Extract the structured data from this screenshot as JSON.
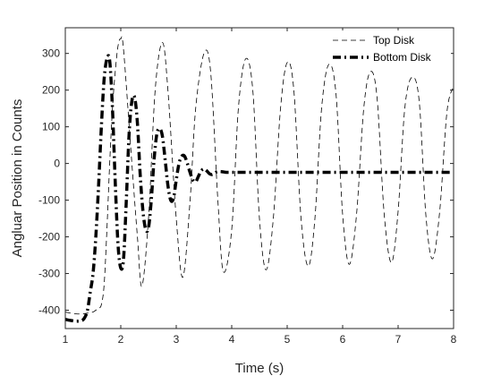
{
  "chart_data": {
    "type": "line",
    "title": "",
    "xlabel": "Time (s)",
    "ylabel": "Angluar Position in Counts",
    "xlim": [
      1,
      8
    ],
    "ylim": [
      -450,
      370
    ],
    "xticks": [
      "1",
      "2",
      "3",
      "4",
      "5",
      "6",
      "7",
      "8"
    ],
    "yticks": [
      "-400",
      "-300",
      "-200",
      "-100",
      "0",
      "100",
      "200",
      "300"
    ],
    "ytick_values": [
      -400,
      -300,
      -200,
      -100,
      0,
      100,
      200,
      300
    ],
    "xtick_values": [
      1,
      2,
      3,
      4,
      5,
      6,
      7,
      8
    ],
    "grid": false,
    "legend_position": "top-right",
    "series": [
      {
        "name": "Top Disk",
        "style": "dashed-thin",
        "color": "#000000",
        "x": [
          1.0,
          1.1,
          1.2,
          1.3,
          1.4,
          1.5,
          1.55,
          1.6,
          1.65,
          1.7,
          1.75,
          1.8,
          1.85,
          1.9,
          1.95,
          2.0,
          2.05,
          2.2,
          2.3,
          2.38,
          2.5,
          2.62,
          2.75,
          2.85,
          3.0,
          3.12,
          3.25,
          3.35,
          3.5,
          3.62,
          3.75,
          3.85,
          4.0,
          4.12,
          4.25,
          4.38,
          4.5,
          4.62,
          4.75,
          4.88,
          5.0,
          5.12,
          5.25,
          5.38,
          5.5,
          5.62,
          5.75,
          5.88,
          6.0,
          6.12,
          6.25,
          6.38,
          6.5,
          6.62,
          6.75,
          6.88,
          7.0,
          7.12,
          7.25,
          7.38,
          7.5,
          7.62,
          7.75,
          7.88,
          8.0
        ],
        "y": [
          -405,
          -408,
          -410,
          -410,
          -408,
          -405,
          -400,
          -395,
          -385,
          -330,
          -180,
          0,
          150,
          250,
          320,
          340,
          310,
          0,
          -200,
          -335,
          -150,
          200,
          330,
          200,
          -150,
          -310,
          -100,
          150,
          300,
          250,
          -100,
          -295,
          -180,
          150,
          285,
          200,
          -150,
          -290,
          -150,
          150,
          275,
          200,
          -150,
          -280,
          -150,
          150,
          270,
          190,
          -140,
          -275,
          -140,
          150,
          250,
          180,
          -140,
          -270,
          -130,
          150,
          235,
          170,
          -140,
          -260,
          -130,
          140,
          210
        ]
      },
      {
        "name": "Bottom Disk",
        "style": "dash-dot-thick",
        "color": "#000000",
        "x": [
          1.0,
          1.1,
          1.2,
          1.3,
          1.35,
          1.4,
          1.45,
          1.5,
          1.55,
          1.6,
          1.65,
          1.7,
          1.75,
          1.8,
          1.85,
          1.9,
          1.95,
          2.0,
          2.05,
          2.1,
          2.15,
          2.2,
          2.25,
          2.3,
          2.35,
          2.4,
          2.45,
          2.5,
          2.55,
          2.6,
          2.65,
          2.7,
          2.75,
          2.8,
          2.85,
          2.9,
          2.95,
          3.0,
          3.05,
          3.1,
          3.15,
          3.2,
          3.25,
          3.3,
          3.35,
          3.4,
          3.45,
          3.5,
          3.55,
          3.6,
          3.65,
          3.7,
          3.75,
          3.8,
          3.85,
          3.9,
          4.0,
          4.5,
          5.0,
          5.5,
          6.0,
          6.5,
          7.0,
          7.5,
          8.0
        ],
        "y": [
          -425,
          -428,
          -430,
          -428,
          -420,
          -400,
          -350,
          -300,
          -200,
          -60,
          100,
          230,
          285,
          280,
          150,
          -50,
          -220,
          -285,
          -260,
          -100,
          80,
          170,
          180,
          110,
          -30,
          -130,
          -180,
          -175,
          -100,
          10,
          80,
          95,
          75,
          10,
          -60,
          -100,
          -95,
          -45,
          0,
          20,
          20,
          0,
          -25,
          -45,
          -50,
          -35,
          -20,
          -15,
          -20,
          -28,
          -30,
          -25,
          -22,
          -22,
          -23,
          -24,
          -24,
          -24,
          -24,
          -24,
          -24,
          -24,
          -24,
          -24,
          -24
        ]
      }
    ]
  }
}
